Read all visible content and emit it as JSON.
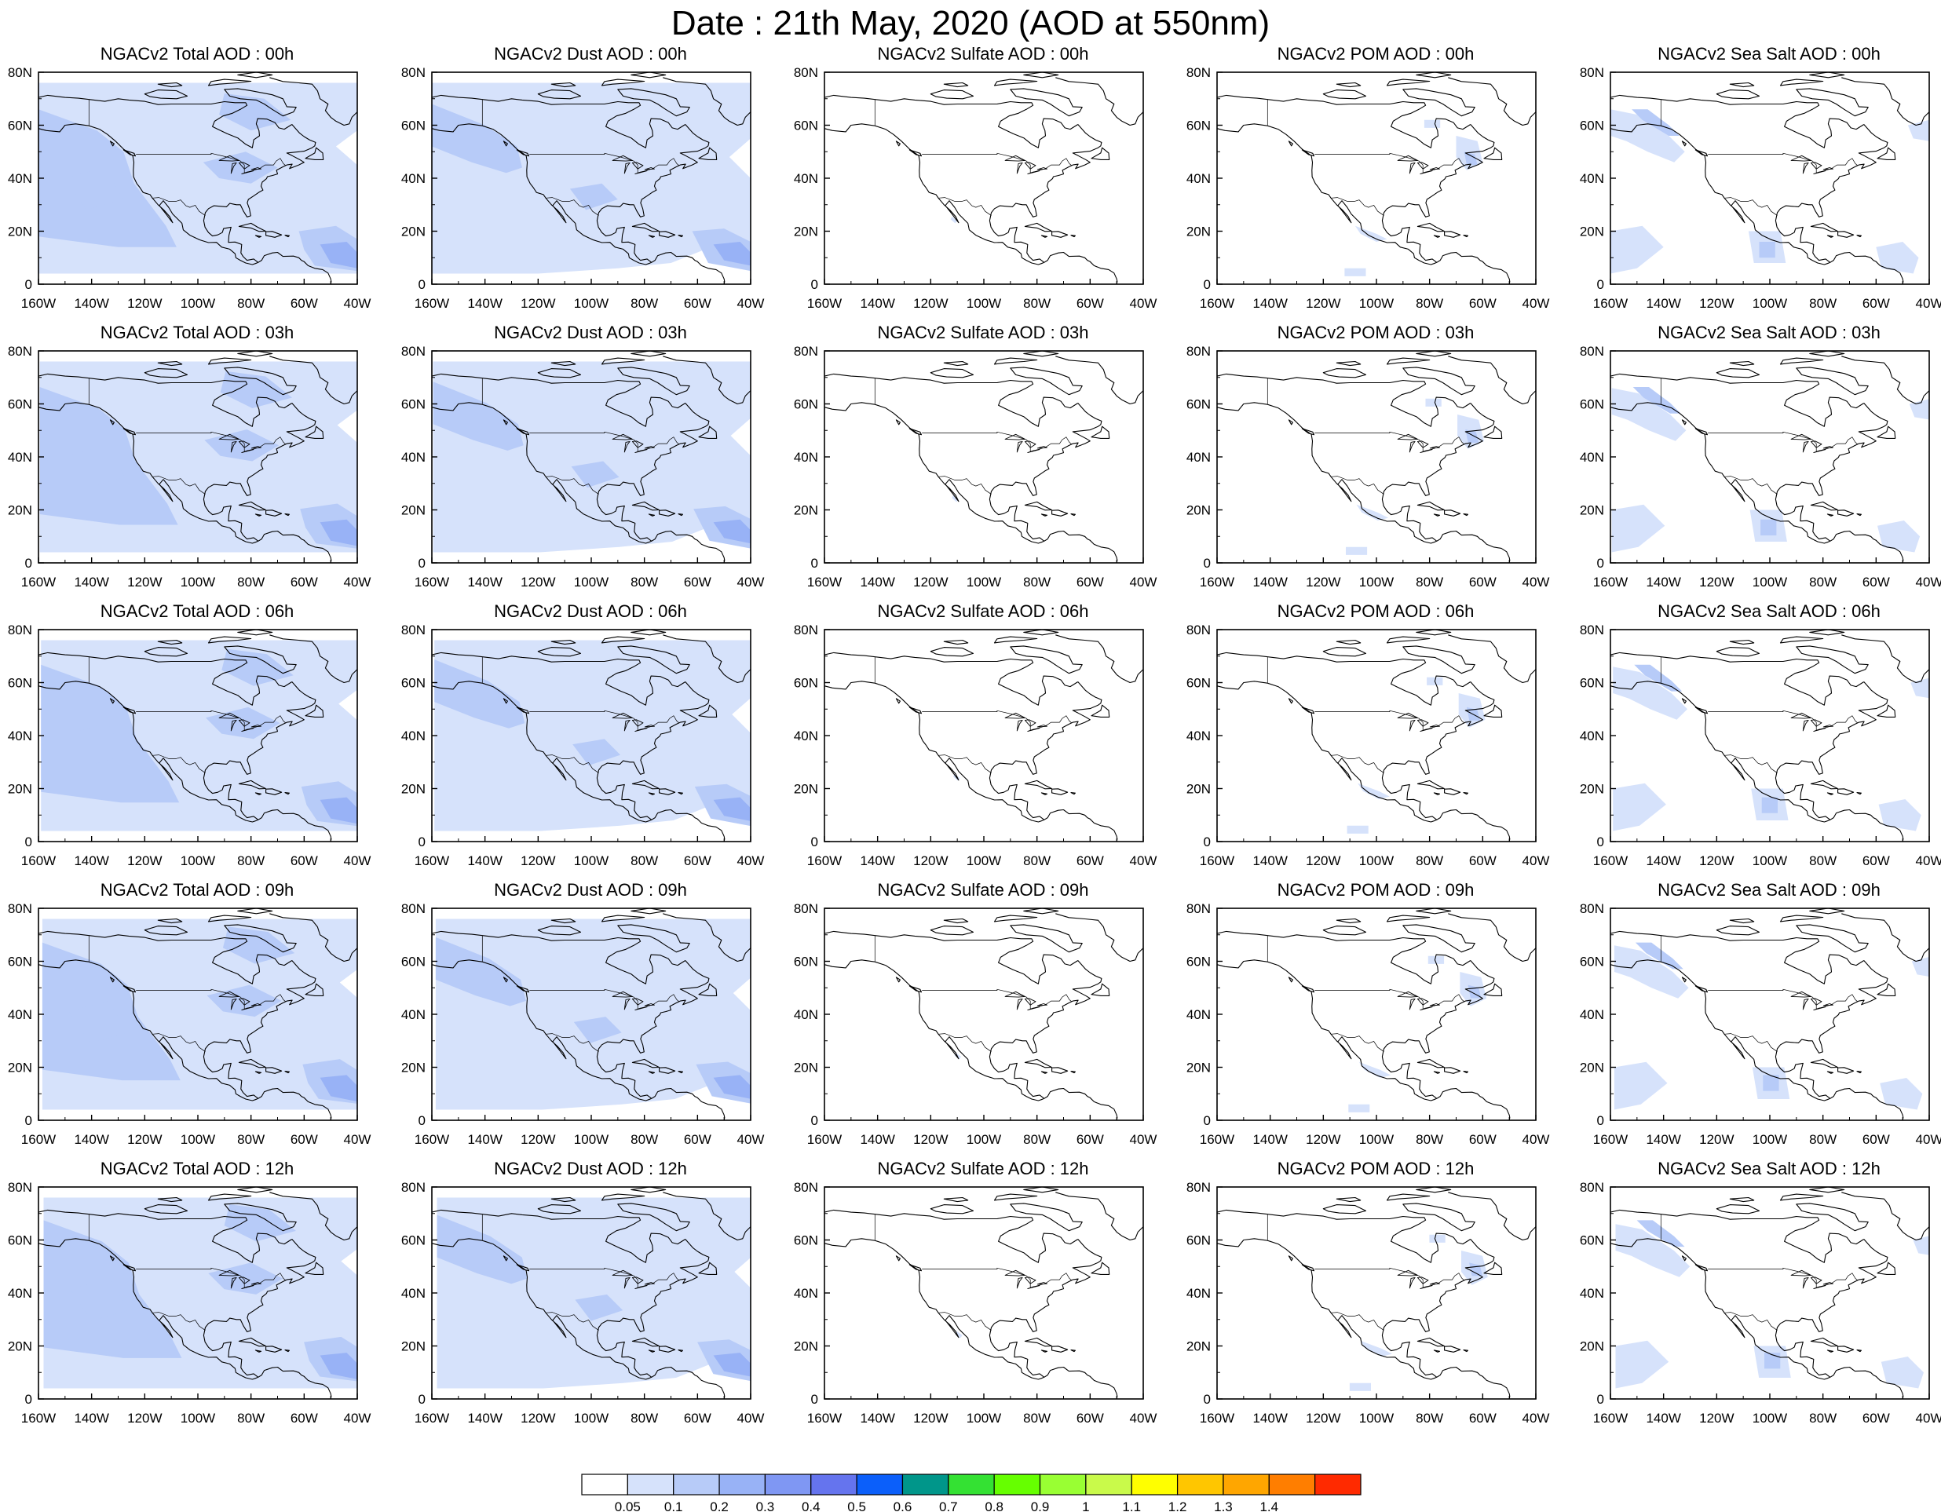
{
  "title": "Date : 21th May, 2020 (AOD at 550nm)",
  "map": {
    "lon_ticks": [
      "160W",
      "140W",
      "120W",
      "100W",
      "80W",
      "60W",
      "40W"
    ],
    "lat_ticks": [
      "0",
      "20N",
      "40N",
      "60N",
      "80N"
    ],
    "lon_range": [
      -160,
      -40
    ],
    "lat_range": [
      0,
      80
    ]
  },
  "panels": [
    [
      "NGACv2 Total AOD : 00h",
      "NGACv2 Dust AOD : 00h",
      "NGACv2 Sulfate AOD : 00h",
      "NGACv2 POM AOD : 00h",
      "NGACv2 Sea Salt AOD : 00h"
    ],
    [
      "NGACv2 Total AOD : 03h",
      "NGACv2 Dust AOD : 03h",
      "NGACv2 Sulfate AOD : 03h",
      "NGACv2 POM AOD : 03h",
      "NGACv2 Sea Salt AOD : 03h"
    ],
    [
      "NGACv2 Total AOD : 06h",
      "NGACv2 Dust AOD : 06h",
      "NGACv2 Sulfate AOD : 06h",
      "NGACv2 POM AOD : 06h",
      "NGACv2 Sea Salt AOD : 06h"
    ],
    [
      "NGACv2 Total AOD : 09h",
      "NGACv2 Dust AOD : 09h",
      "NGACv2 Sulfate AOD : 09h",
      "NGACv2 POM AOD : 09h",
      "NGACv2 Sea Salt  AOD : 09h"
    ],
    [
      "NGACv2 Total AOD  : 12h",
      "NGACv2 Dust AOD : 12h",
      "NGACv2 Sulfate AOD : 12h",
      "NGACv2 POM  AOD : 12h",
      "NGACv2 Sea Salt  AOD : 12h"
    ]
  ],
  "colorbar": {
    "labels": [
      "0.05",
      "0.1",
      "0.2",
      "0.3",
      "0.4",
      "0.5",
      "0.6",
      "0.7",
      "0.8",
      "0.9",
      "1",
      "1.1",
      "1.2",
      "1.3",
      "1.4"
    ],
    "colors": [
      "#ffffff",
      "#d6e2fb",
      "#b7cbf8",
      "#98b2f6",
      "#7f97f3",
      "#6574ee",
      "#0b5ffa",
      "#00968a",
      "#34e133",
      "#66ff00",
      "#99ff33",
      "#c9fa4a",
      "#ffff00",
      "#ffc600",
      "#ffa600",
      "#ff7e00",
      "#ff2a00"
    ]
  },
  "aod_colors": {
    "light": "#d6e2fb",
    "medium": "#b7cbf8",
    "strong": "#98b2f6",
    "heavy": "#7f97f3"
  }
}
